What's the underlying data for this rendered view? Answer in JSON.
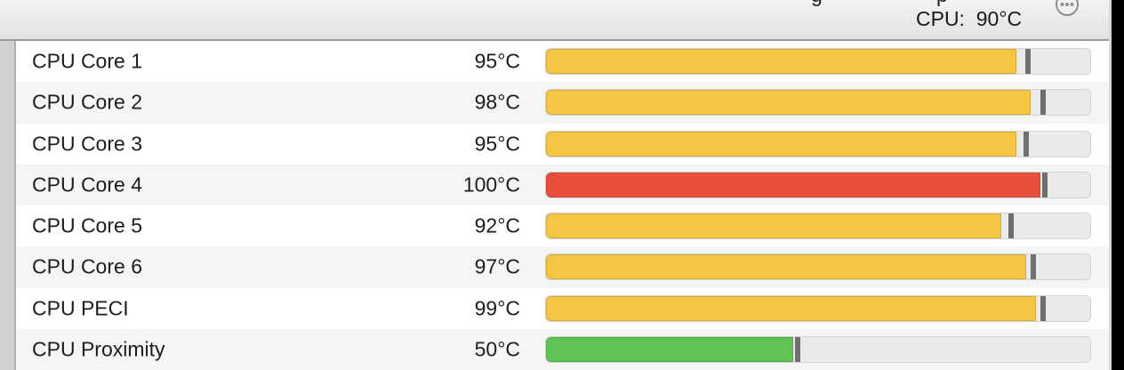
{
  "header": {
    "clipped_fragments": [
      "g",
      "p"
    ],
    "summary_label": "CPU:  90°C",
    "menu_button": "ellipsis-circle"
  },
  "scale": {
    "min": 0,
    "max": 110,
    "unit": "°C"
  },
  "colors": {
    "warning": "#F5C544",
    "critical": "#E8503C",
    "normal": "#5FC454",
    "tick": "#6F6F6F",
    "track_bg": "#EAEAEA",
    "track_border": "#D3D3D3",
    "icon_gray": "#8F8F8F"
  },
  "rows": [
    {
      "label": "CPU Core 1",
      "temp": "95°C",
      "value": 95,
      "tick": 97.5,
      "level": "warning"
    },
    {
      "label": "CPU Core 2",
      "temp": "98°C",
      "value": 98,
      "tick": 100.5,
      "level": "warning"
    },
    {
      "label": "CPU Core 3",
      "temp": "95°C",
      "value": 95,
      "tick": 97,
      "level": "warning"
    },
    {
      "label": "CPU Core 4",
      "temp": "100°C",
      "value": 100,
      "tick": 100.8,
      "level": "critical"
    },
    {
      "label": "CPU Core 5",
      "temp": "92°C",
      "value": 92,
      "tick": 94,
      "level": "warning"
    },
    {
      "label": "CPU Core 6",
      "temp": "97°C",
      "value": 97,
      "tick": 98.5,
      "level": "warning"
    },
    {
      "label": "CPU PECI",
      "temp": "99°C",
      "value": 99,
      "tick": 100.5,
      "level": "warning"
    },
    {
      "label": "CPU Proximity",
      "temp": "50°C",
      "value": 50,
      "tick": 50.8,
      "level": "normal"
    }
  ]
}
